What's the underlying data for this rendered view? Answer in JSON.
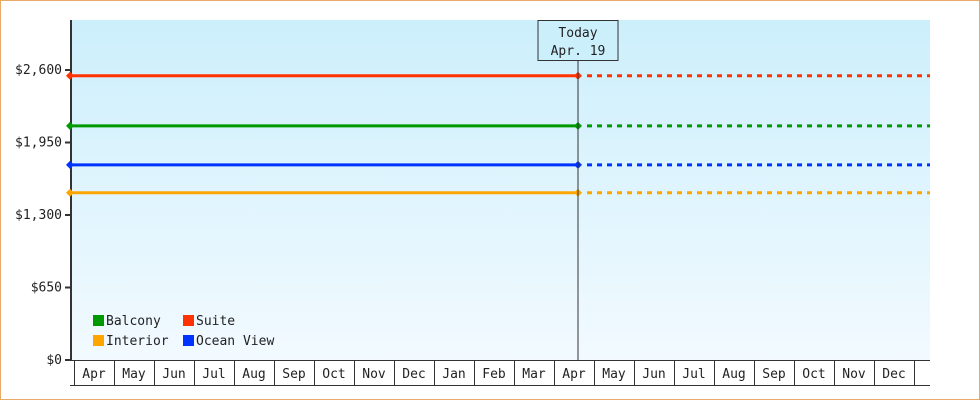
{
  "chart_data": {
    "type": "line",
    "title": "",
    "xlabel": "",
    "ylabel": "",
    "ylim": [
      0,
      2925
    ],
    "y_ticks": [
      "$0",
      "$650",
      "$1,300",
      "$1,950",
      "$2,600"
    ],
    "y_tick_values": [
      0,
      650,
      1300,
      1950,
      2600
    ],
    "x_ticks": [
      "Apr",
      "May",
      "Jun",
      "Jul",
      "Aug",
      "Sep",
      "Oct",
      "Nov",
      "Dec",
      "Jan",
      "Feb",
      "Mar",
      "Apr",
      "May",
      "Jun",
      "Jul",
      "Aug",
      "Sep",
      "Oct",
      "Nov",
      "Dec"
    ],
    "today": {
      "title": "Today",
      "date": "Apr. 19",
      "month_index": 12.6
    },
    "series": [
      {
        "name": "Balcony",
        "color": "#009900",
        "value": 2099
      },
      {
        "name": "Suite",
        "color": "#ff3300",
        "value": 2549
      },
      {
        "name": "Interior",
        "color": "#ffa500",
        "value": 1499
      },
      {
        "name": "Ocean View",
        "color": "#0033ff",
        "value": 1749
      }
    ],
    "projection_style": "dotted after today",
    "legend_position": "bottom-left",
    "grid": false,
    "background": [
      "#cceffc",
      "#f2faff"
    ]
  }
}
